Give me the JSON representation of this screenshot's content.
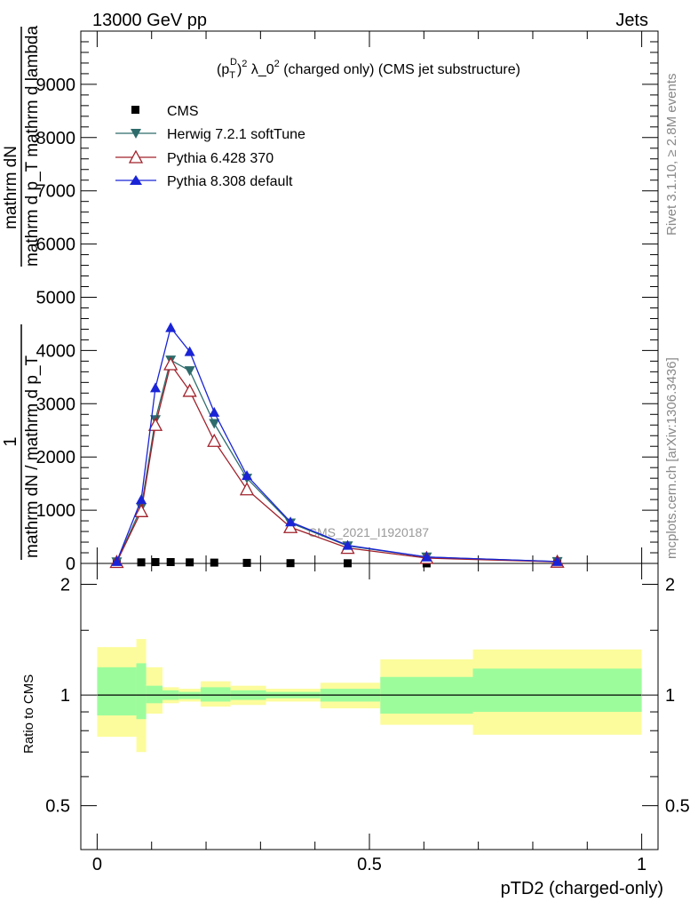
{
  "header": {
    "left": "13000 GeV pp",
    "right": "Jets"
  },
  "side_labels": {
    "rivet": "Rivet 3.1.10, ≥ 2.8M events",
    "mcplots": "mcplots.cern.ch [arXiv:1306.3436]"
  },
  "watermark": "CMS_2021_I1920187",
  "main_ylabel": {
    "numerator": "mathrm dN",
    "numerator2": "mathrm d p_T mathrm d lambda",
    "one": "1",
    "denominator": "mathrm dN / mathrm d p_T"
  },
  "ratio_ylabel": "Ratio to CMS",
  "colors": {
    "cms": "#000000",
    "herwig": "#2e6b6b",
    "pythia6": "#a0202a",
    "pythia8": "#1a24d6",
    "band_inner": "#9cfc9c",
    "band_outer": "#fcfc9c"
  },
  "chart_data": [
    {
      "type": "line",
      "title": "(p_T^D)^2 λ_0^2 (charged only) (CMS jet substructure)",
      "title_parts": {
        "pre": "(p",
        "sub": "T",
        "sup_d": "D",
        "close": ")",
        "sup2": "2",
        "mid": " λ_0",
        "sup3": "2",
        "post": " (charged only) (CMS jet substructure)"
      },
      "xlabel": "pTD2 (charged-only)",
      "ylabel": "1 / mathrm dN / mathrm d p_T · mathrm dN / mathrm d p_T mathrm d lambda",
      "xlim": [
        -0.03,
        1.03
      ],
      "ylim": [
        0,
        10000
      ],
      "xticks": [
        0,
        0.5,
        1
      ],
      "xtick_labels": [
        "0",
        "0.5",
        "1"
      ],
      "yticks": [
        0,
        1000,
        2000,
        3000,
        4000,
        5000,
        6000,
        7000,
        8000,
        9000
      ],
      "ytick_labels": [
        "0",
        "1000",
        "2000",
        "3000",
        "4000",
        "5000",
        "6000",
        "7000",
        "8000",
        "9000"
      ],
      "legend_position": "top-left",
      "series": [
        {
          "name": "CMS",
          "marker": "square",
          "x": [
            0.036,
            0.081,
            0.107,
            0.135,
            0.17,
            0.215,
            0.275,
            0.355,
            0.46,
            0.605,
            0.845
          ],
          "y": [
            5,
            20,
            25,
            25,
            20,
            15,
            10,
            5,
            3,
            1,
            0.5
          ]
        },
        {
          "name": "Herwig 7.2.1 softTune",
          "marker": "triangle-down",
          "x": [
            0.036,
            0.081,
            0.107,
            0.135,
            0.17,
            0.215,
            0.275,
            0.355,
            0.46,
            0.605,
            0.845
          ],
          "y": [
            30,
            1050,
            2700,
            3820,
            3620,
            2630,
            1600,
            760,
            330,
            120,
            35
          ]
        },
        {
          "name": "Pythia 6.428 370",
          "marker": "triangle-open",
          "x": [
            0.036,
            0.081,
            0.107,
            0.135,
            0.17,
            0.215,
            0.275,
            0.355,
            0.46,
            0.605,
            0.845
          ],
          "y": [
            25,
            980,
            2600,
            3740,
            3240,
            2300,
            1390,
            680,
            290,
            100,
            30
          ]
        },
        {
          "name": "Pythia 8.308 default",
          "marker": "triangle-up",
          "x": [
            0.036,
            0.081,
            0.107,
            0.135,
            0.17,
            0.215,
            0.275,
            0.355,
            0.46,
            0.605,
            0.845
          ],
          "y": [
            35,
            1200,
            3300,
            4430,
            3980,
            2840,
            1650,
            780,
            340,
            120,
            35
          ]
        }
      ]
    },
    {
      "type": "area",
      "ylabel": "Ratio to CMS",
      "xlim": [
        -0.03,
        1.03
      ],
      "ylim": [
        0.38,
        2.28
      ],
      "yticks": [
        0.5,
        1,
        2
      ],
      "ytick_labels": [
        "0.5",
        "1",
        "2"
      ],
      "reference_line": 1,
      "bands": [
        {
          "x0": 0.0,
          "x1": 0.072,
          "inner": [
            0.88,
            1.19
          ],
          "outer": [
            0.77,
            1.35
          ]
        },
        {
          "x0": 0.072,
          "x1": 0.09,
          "inner": [
            0.86,
            1.22
          ],
          "outer": [
            0.7,
            1.42
          ]
        },
        {
          "x0": 0.09,
          "x1": 0.12,
          "inner": [
            0.95,
            1.06
          ],
          "outer": [
            0.89,
            1.19
          ]
        },
        {
          "x0": 0.12,
          "x1": 0.15,
          "inner": [
            0.97,
            1.03
          ],
          "outer": [
            0.95,
            1.05
          ]
        },
        {
          "x0": 0.15,
          "x1": 0.19,
          "inner": [
            0.975,
            1.02
          ],
          "outer": [
            0.96,
            1.04
          ]
        },
        {
          "x0": 0.19,
          "x1": 0.245,
          "inner": [
            0.96,
            1.05
          ],
          "outer": [
            0.93,
            1.09
          ]
        },
        {
          "x0": 0.245,
          "x1": 0.31,
          "inner": [
            0.97,
            1.03
          ],
          "outer": [
            0.94,
            1.06
          ]
        },
        {
          "x0": 0.31,
          "x1": 0.41,
          "inner": [
            0.98,
            1.02
          ],
          "outer": [
            0.96,
            1.04
          ]
        },
        {
          "x0": 0.41,
          "x1": 0.52,
          "inner": [
            0.96,
            1.04
          ],
          "outer": [
            0.92,
            1.08
          ]
        },
        {
          "x0": 0.52,
          "x1": 0.69,
          "inner": [
            0.89,
            1.12
          ],
          "outer": [
            0.83,
            1.25
          ]
        },
        {
          "x0": 0.69,
          "x1": 1.0,
          "inner": [
            0.9,
            1.18
          ],
          "outer": [
            0.78,
            1.33
          ]
        }
      ]
    }
  ]
}
